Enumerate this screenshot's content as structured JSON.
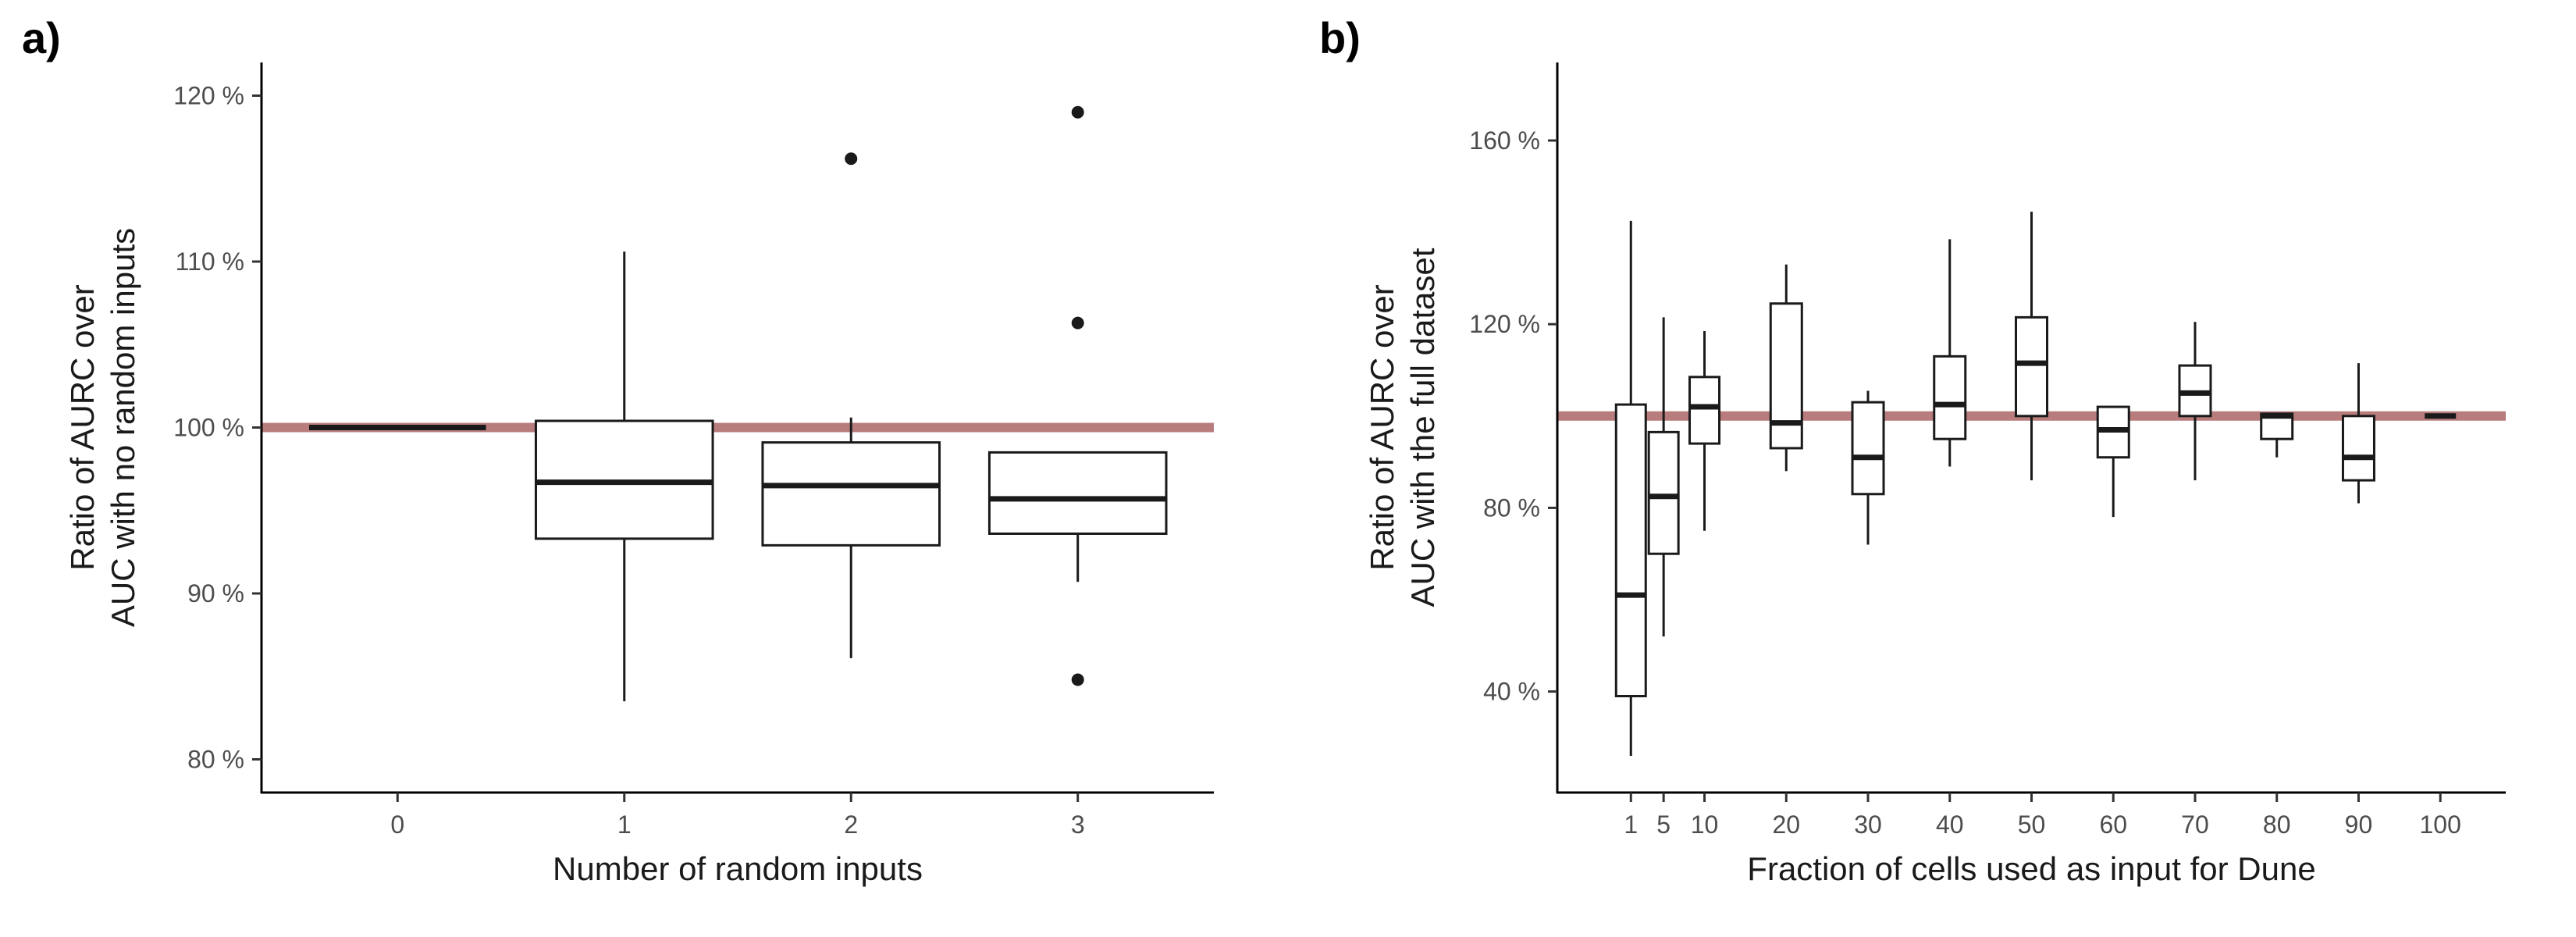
{
  "chart_data": [
    {
      "panel": "a)",
      "type": "boxplot",
      "title": "",
      "xlabel": "Number of random inputs",
      "ylabel": [
        "Ratio of AURC over",
        "AUC with no random inputs"
      ],
      "ylim": [
        78,
        122
      ],
      "yticks": [
        80,
        90,
        100,
        110,
        120
      ],
      "tick_suffix": " %",
      "reference_line": {
        "value": 100,
        "color": "#b87c7c"
      },
      "categories": [
        "0",
        "1",
        "2",
        "3"
      ],
      "boxes": [
        {
          "category": "0",
          "min": 100,
          "q1": 100,
          "median": 100,
          "q3": 100,
          "max": 100,
          "outliers": []
        },
        {
          "category": "1",
          "min": 83.5,
          "q1": 93.3,
          "median": 96.7,
          "q3": 100.4,
          "max": 110.6,
          "outliers": []
        },
        {
          "category": "2",
          "min": 86.1,
          "q1": 92.9,
          "median": 96.5,
          "q3": 99.1,
          "max": 100.6,
          "outliers": [
            116.2
          ]
        },
        {
          "category": "3",
          "min": 90.7,
          "q1": 93.6,
          "median": 95.7,
          "q3": 98.5,
          "max": 98.5,
          "outliers": [
            119.0,
            106.3,
            84.8
          ]
        }
      ]
    },
    {
      "panel": "b)",
      "type": "boxplot",
      "title": "",
      "xlabel": "Fraction of cells used as input for Dune",
      "ylabel": [
        "Ratio of AURC over",
        "AUC with the full dataset"
      ],
      "ylim": [
        18,
        177
      ],
      "yticks": [
        40,
        80,
        120,
        160
      ],
      "tick_suffix": " %",
      "reference_line": {
        "value": 100,
        "color": "#b87c7c"
      },
      "x_range": [
        -8,
        108
      ],
      "categories": [
        1,
        5,
        10,
        20,
        30,
        40,
        50,
        60,
        70,
        80,
        90,
        100
      ],
      "boxes": [
        {
          "category": 1,
          "min": 26,
          "q1": 39,
          "median": 61,
          "q3": 102.5,
          "max": 142.5,
          "outliers": []
        },
        {
          "category": 5,
          "min": 52,
          "q1": 70,
          "median": 82.5,
          "q3": 96.5,
          "max": 121.5,
          "outliers": []
        },
        {
          "category": 10,
          "min": 75,
          "q1": 94,
          "median": 102,
          "q3": 108.5,
          "max": 118.5,
          "outliers": []
        },
        {
          "category": 20,
          "min": 88,
          "q1": 93,
          "median": 98.5,
          "q3": 124.5,
          "max": 133,
          "outliers": []
        },
        {
          "category": 30,
          "min": 72,
          "q1": 83,
          "median": 91,
          "q3": 103,
          "max": 105.5,
          "outliers": []
        },
        {
          "category": 40,
          "min": 89,
          "q1": 95,
          "median": 102.5,
          "q3": 113,
          "max": 138.5,
          "outliers": []
        },
        {
          "category": 50,
          "min": 86,
          "q1": 100,
          "median": 111.5,
          "q3": 121.5,
          "max": 144.5,
          "outliers": []
        },
        {
          "category": 60,
          "min": 78,
          "q1": 91,
          "median": 97,
          "q3": 102,
          "max": 102,
          "outliers": []
        },
        {
          "category": 70,
          "min": 86,
          "q1": 100,
          "median": 105,
          "q3": 111,
          "max": 120.5,
          "outliers": []
        },
        {
          "category": 80,
          "min": 91,
          "q1": 95,
          "median": 100,
          "q3": 100.5,
          "max": 100.5,
          "outliers": []
        },
        {
          "category": 90,
          "min": 81,
          "q1": 86,
          "median": 91,
          "q3": 100,
          "max": 111.5,
          "outliers": []
        },
        {
          "category": 100,
          "min": 100,
          "q1": 100,
          "median": 100,
          "q3": 100,
          "max": 100,
          "outliers": []
        }
      ]
    }
  ]
}
